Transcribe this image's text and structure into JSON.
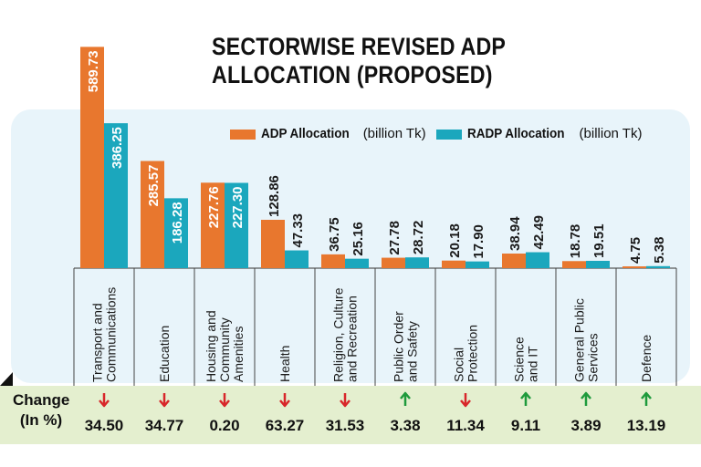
{
  "title_line1": "SECTORWISE REVISED ADP",
  "title_line2": "ALLOCATION (PROPOSED)",
  "change_label_line1": "Change",
  "change_label_line2": "(In %)",
  "colors": {
    "adp": "#e8772e",
    "radp": "#1ba7bd",
    "up": "#1e9a3c",
    "down": "#d8262a",
    "panel": "#e8f4fa",
    "band": "#e4efcf"
  },
  "chart_data": {
    "type": "bar",
    "title": "SECTORWISE REVISED ADP ALLOCATION (PROPOSED)",
    "categories": [
      [
        "Transport and",
        "Communications"
      ],
      [
        "Education"
      ],
      [
        "Housing and",
        "Community",
        "Amenities"
      ],
      [
        "Health"
      ],
      [
        "Religion, Culture",
        "and Recreation"
      ],
      [
        "Public Order",
        "and Safety"
      ],
      [
        "Social",
        "Protection"
      ],
      [
        "Science",
        "and IT"
      ],
      [
        "General Public",
        "Services"
      ],
      [
        "Defence"
      ]
    ],
    "series": [
      {
        "name": "ADP Allocation",
        "unit": "(billion Tk)",
        "labels": [
          "589.73",
          "285.57",
          "227.76",
          "128.86",
          "36.75",
          "27.78",
          "20.18",
          "38.94",
          "18.78",
          "4.75"
        ],
        "values": [
          589.73,
          285.57,
          227.76,
          128.86,
          36.75,
          27.78,
          20.18,
          38.94,
          18.78,
          4.75
        ]
      },
      {
        "name": "RADP Allocation",
        "unit": "(billion Tk)",
        "labels": [
          "386.25",
          "186.28",
          "227.30",
          "47.33",
          "25.16",
          "28.72",
          "17.90",
          "42.49",
          "19.51",
          "5.38"
        ],
        "values": [
          386.25,
          186.28,
          227.3,
          47.33,
          25.16,
          28.72,
          17.9,
          42.49,
          19.51,
          5.38
        ]
      }
    ],
    "change_percent": [
      "34.50",
      "34.77",
      "0.20",
      "63.27",
      "31.53",
      "3.38",
      "11.34",
      "9.11",
      "3.89",
      "13.19"
    ],
    "change_direction": [
      "down",
      "down",
      "down",
      "down",
      "down",
      "up",
      "down",
      "up",
      "up",
      "up"
    ],
    "legend_position": "top-right",
    "grid": false
  }
}
